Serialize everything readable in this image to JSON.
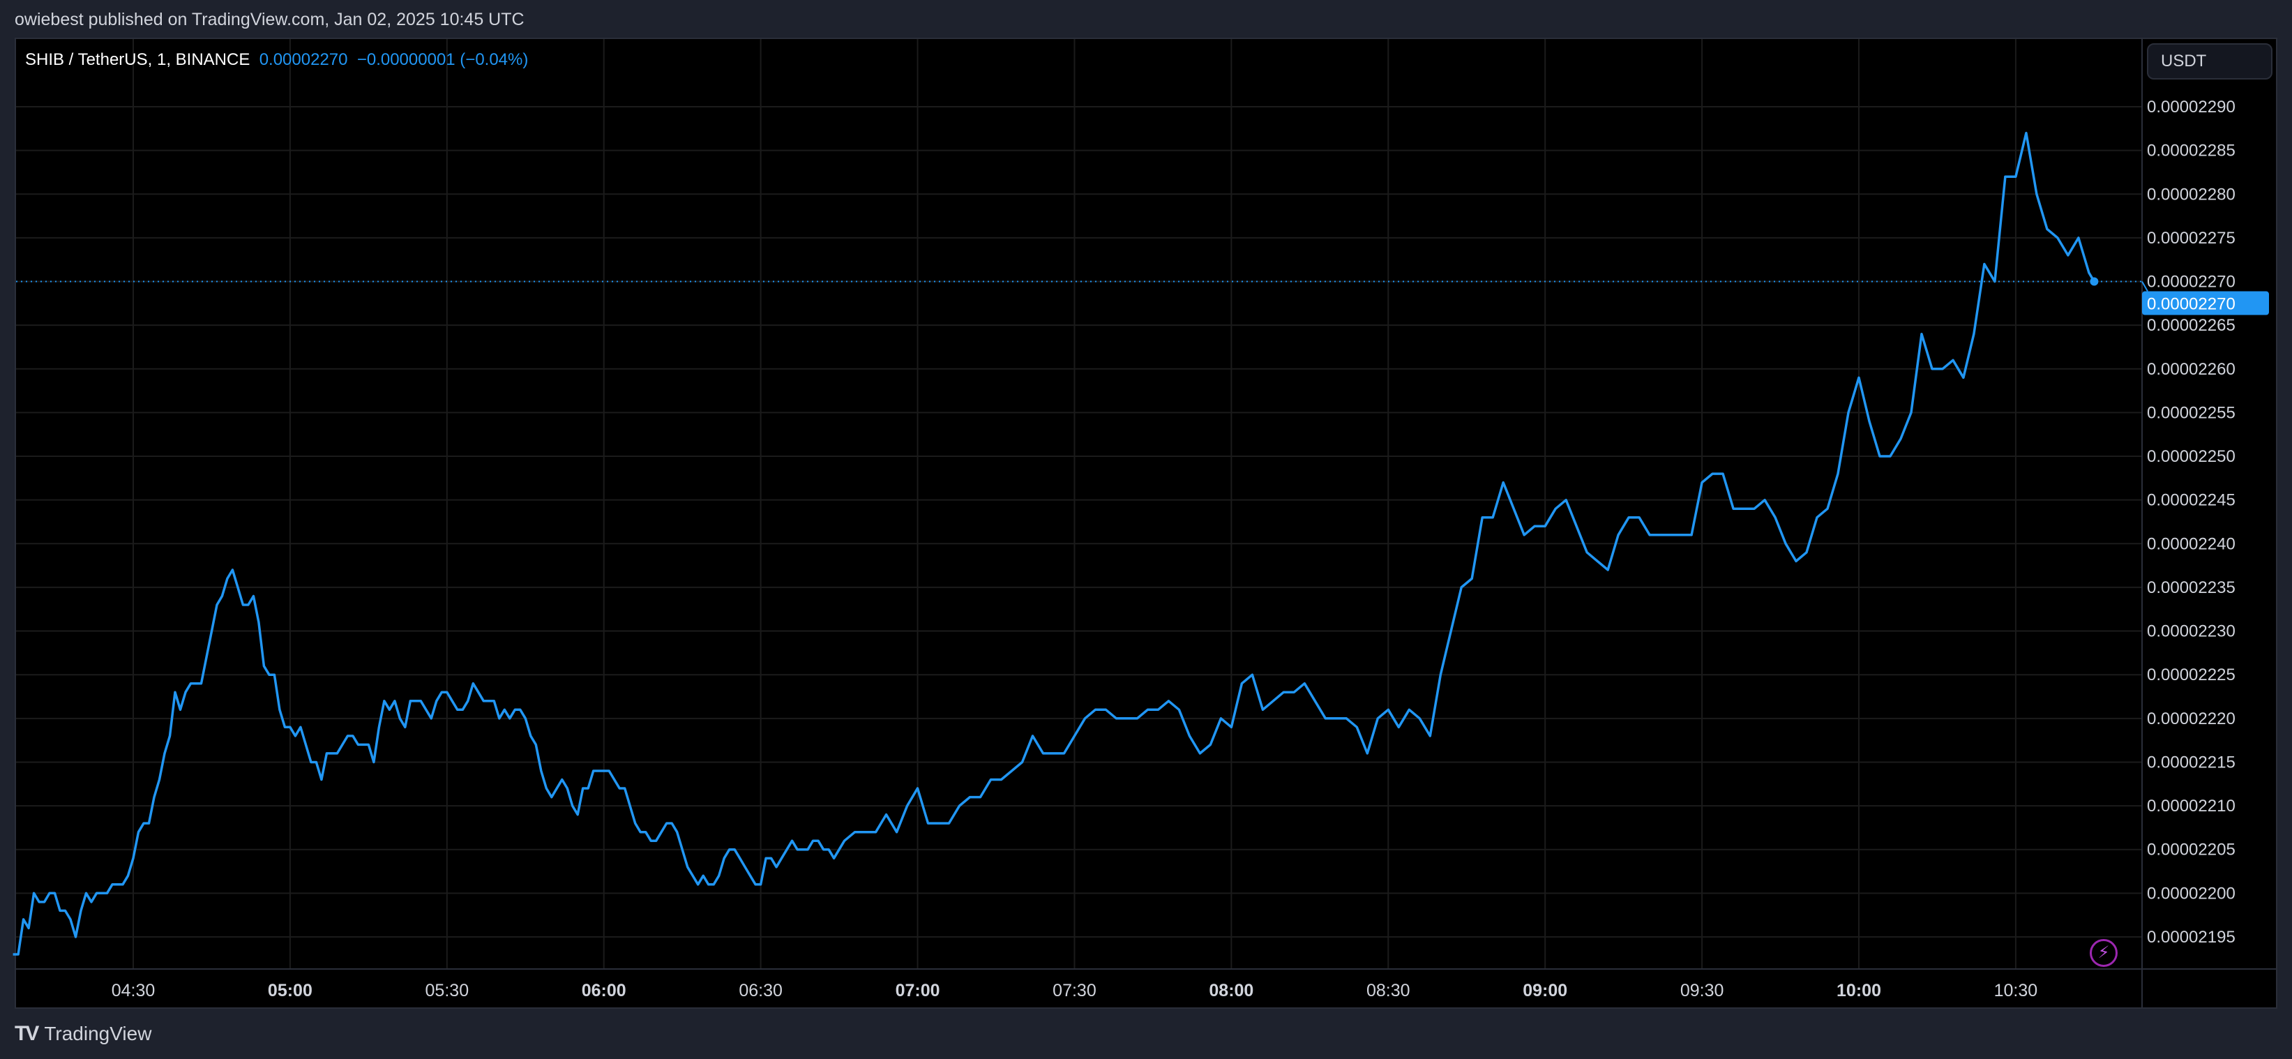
{
  "header": {
    "published": "owiebest published on TradingView.com, Jan 02, 2025 10:45 UTC"
  },
  "legend": {
    "symbol": "SHIB / TetherUS, 1, BINANCE",
    "price": "0.00002270",
    "change": "−0.00000001 (−0.04%)"
  },
  "price_scale": {
    "unit_button": "USDT"
  },
  "footer": {
    "brand": "TradingView",
    "logo_icon": "tradingview-logo-icon"
  },
  "colors": {
    "line": "#2196f3",
    "background": "#000000",
    "frame": "#1e222d",
    "grid": "#1b1b1b",
    "text": "#d1d4dc"
  },
  "icons": {
    "bottom_right": "lightning-icon"
  },
  "chart_data": {
    "type": "line",
    "title": "",
    "xlabel": "",
    "ylabel": "",
    "ylim": [
      2.19e-05,
      2.295e-05
    ],
    "grid": true,
    "last_price": 2.27e-05,
    "last_price_label": "0.00002270",
    "y_ticks": [
      "0.00002290",
      "0.00002285",
      "0.00002280",
      "0.00002275",
      "0.00002270",
      "0.00002265",
      "0.00002260",
      "0.00002255",
      "0.00002250",
      "0.00002245",
      "0.00002240",
      "0.00002235",
      "0.00002230",
      "0.00002225",
      "0.00002220",
      "0.00002215",
      "0.00002210",
      "0.00002205",
      "0.00002200",
      "0.00002195"
    ],
    "x_ticks": [
      {
        "label": "04:30",
        "bold": false
      },
      {
        "label": "05:00",
        "bold": true
      },
      {
        "label": "05:30",
        "bold": false
      },
      {
        "label": "06:00",
        "bold": true
      },
      {
        "label": "06:30",
        "bold": false
      },
      {
        "label": "07:00",
        "bold": true
      },
      {
        "label": "07:30",
        "bold": false
      },
      {
        "label": "08:00",
        "bold": true
      },
      {
        "label": "08:30",
        "bold": false
      },
      {
        "label": "09:00",
        "bold": true
      },
      {
        "label": "09:30",
        "bold": false
      },
      {
        "label": "10:00",
        "bold": true
      },
      {
        "label": "10:30",
        "bold": false
      }
    ],
    "x": [
      "04:07",
      "04:08",
      "04:09",
      "04:10",
      "04:11",
      "04:12",
      "04:13",
      "04:14",
      "04:15",
      "04:16",
      "04:17",
      "04:18",
      "04:19",
      "04:20",
      "04:21",
      "04:22",
      "04:23",
      "04:24",
      "04:25",
      "04:26",
      "04:27",
      "04:28",
      "04:29",
      "04:30",
      "04:31",
      "04:32",
      "04:33",
      "04:34",
      "04:35",
      "04:36",
      "04:37",
      "04:38",
      "04:39",
      "04:40",
      "04:41",
      "04:42",
      "04:43",
      "04:44",
      "04:45",
      "04:46",
      "04:47",
      "04:48",
      "04:49",
      "04:50",
      "04:51",
      "04:52",
      "04:53",
      "04:54",
      "04:55",
      "04:56",
      "04:57",
      "04:58",
      "04:59",
      "05:00",
      "05:01",
      "05:02",
      "05:03",
      "05:04",
      "05:05",
      "05:06",
      "05:07",
      "05:08",
      "05:09",
      "05:10",
      "05:11",
      "05:12",
      "05:13",
      "05:14",
      "05:15",
      "05:16",
      "05:17",
      "05:18",
      "05:19",
      "05:20",
      "05:21",
      "05:22",
      "05:23",
      "05:24",
      "05:25",
      "05:26",
      "05:27",
      "05:28",
      "05:29",
      "05:30",
      "05:31",
      "05:32",
      "05:33",
      "05:34",
      "05:35",
      "05:36",
      "05:37",
      "05:38",
      "05:39",
      "05:40",
      "05:41",
      "05:42",
      "05:43",
      "05:44",
      "05:45",
      "05:46",
      "05:47",
      "05:48",
      "05:49",
      "05:50",
      "05:51",
      "05:52",
      "05:53",
      "05:54",
      "05:55",
      "05:56",
      "05:57",
      "05:58",
      "05:59",
      "06:00",
      "06:01",
      "06:02",
      "06:03",
      "06:04",
      "06:05",
      "06:06",
      "06:07",
      "06:08",
      "06:09",
      "06:10",
      "06:11",
      "06:12",
      "06:13",
      "06:14",
      "06:15",
      "06:16",
      "06:17",
      "06:18",
      "06:19",
      "06:20",
      "06:21",
      "06:22",
      "06:23",
      "06:24",
      "06:25",
      "06:26",
      "06:27",
      "06:28",
      "06:29",
      "06:30",
      "06:31",
      "06:32",
      "06:33",
      "06:34",
      "06:35",
      "06:36",
      "06:37",
      "06:38",
      "06:39",
      "06:40",
      "06:41",
      "06:42",
      "06:43",
      "06:44",
      "06:46",
      "06:48",
      "06:50",
      "06:52",
      "06:54",
      "06:56",
      "06:58",
      "07:00",
      "07:02",
      "07:04",
      "07:06",
      "07:08",
      "07:10",
      "07:12",
      "07:14",
      "07:16",
      "07:18",
      "07:20",
      "07:22",
      "07:24",
      "07:26",
      "07:28",
      "07:30",
      "07:32",
      "07:34",
      "07:36",
      "07:38",
      "07:40",
      "07:42",
      "07:44",
      "07:46",
      "07:48",
      "07:50",
      "07:52",
      "07:54",
      "07:56",
      "07:58",
      "08:00",
      "08:02",
      "08:04",
      "08:06",
      "08:08",
      "08:10",
      "08:12",
      "08:14",
      "08:16",
      "08:18",
      "08:20",
      "08:22",
      "08:24",
      "08:26",
      "08:28",
      "08:30",
      "08:32",
      "08:34",
      "08:36",
      "08:38",
      "08:40",
      "08:42",
      "08:44",
      "08:46",
      "08:48",
      "08:50",
      "08:52",
      "08:54",
      "08:56",
      "08:58",
      "09:00",
      "09:02",
      "09:04",
      "09:06",
      "09:08",
      "09:10",
      "09:12",
      "09:14",
      "09:16",
      "09:18",
      "09:20",
      "09:22",
      "09:24",
      "09:26",
      "09:28",
      "09:30",
      "09:32",
      "09:34",
      "09:36",
      "09:38",
      "09:40",
      "09:42",
      "09:44",
      "09:46",
      "09:48",
      "09:50",
      "09:52",
      "09:54",
      "09:56",
      "09:58",
      "10:00",
      "10:02",
      "10:04",
      "10:06",
      "10:08",
      "10:10",
      "10:12",
      "10:14",
      "10:16",
      "10:18",
      "10:20",
      "10:22",
      "10:24",
      "10:26",
      "10:28",
      "10:30",
      "10:32",
      "10:34",
      "10:36",
      "10:38",
      "10:40",
      "10:42",
      "10:44",
      "10:45"
    ],
    "y": [
      2.193e-05,
      2.193e-05,
      2.197e-05,
      2.196e-05,
      2.2e-05,
      2.199e-05,
      2.199e-05,
      2.2e-05,
      2.2e-05,
      2.198e-05,
      2.198e-05,
      2.197e-05,
      2.195e-05,
      2.198e-05,
      2.2e-05,
      2.199e-05,
      2.2e-05,
      2.2e-05,
      2.2e-05,
      2.201e-05,
      2.201e-05,
      2.201e-05,
      2.202e-05,
      2.204e-05,
      2.207e-05,
      2.208e-05,
      2.208e-05,
      2.211e-05,
      2.213e-05,
      2.216e-05,
      2.218e-05,
      2.223e-05,
      2.221e-05,
      2.223e-05,
      2.224e-05,
      2.224e-05,
      2.224e-05,
      2.227e-05,
      2.23e-05,
      2.233e-05,
      2.234e-05,
      2.236e-05,
      2.237e-05,
      2.235e-05,
      2.233e-05,
      2.233e-05,
      2.234e-05,
      2.231e-05,
      2.226e-05,
      2.225e-05,
      2.225e-05,
      2.221e-05,
      2.219e-05,
      2.219e-05,
      2.218e-05,
      2.219e-05,
      2.217e-05,
      2.215e-05,
      2.215e-05,
      2.213e-05,
      2.216e-05,
      2.216e-05,
      2.216e-05,
      2.217e-05,
      2.218e-05,
      2.218e-05,
      2.217e-05,
      2.217e-05,
      2.217e-05,
      2.215e-05,
      2.219e-05,
      2.222e-05,
      2.221e-05,
      2.222e-05,
      2.22e-05,
      2.219e-05,
      2.222e-05,
      2.222e-05,
      2.222e-05,
      2.221e-05,
      2.22e-05,
      2.222e-05,
      2.223e-05,
      2.223e-05,
      2.222e-05,
      2.221e-05,
      2.221e-05,
      2.222e-05,
      2.224e-05,
      2.223e-05,
      2.222e-05,
      2.222e-05,
      2.222e-05,
      2.22e-05,
      2.221e-05,
      2.22e-05,
      2.221e-05,
      2.221e-05,
      2.22e-05,
      2.218e-05,
      2.217e-05,
      2.214e-05,
      2.212e-05,
      2.211e-05,
      2.212e-05,
      2.213e-05,
      2.212e-05,
      2.21e-05,
      2.209e-05,
      2.212e-05,
      2.212e-05,
      2.214e-05,
      2.214e-05,
      2.214e-05,
      2.214e-05,
      2.213e-05,
      2.212e-05,
      2.212e-05,
      2.21e-05,
      2.208e-05,
      2.207e-05,
      2.207e-05,
      2.206e-05,
      2.206e-05,
      2.207e-05,
      2.208e-05,
      2.208e-05,
      2.207e-05,
      2.205e-05,
      2.203e-05,
      2.202e-05,
      2.201e-05,
      2.202e-05,
      2.201e-05,
      2.201e-05,
      2.202e-05,
      2.204e-05,
      2.205e-05,
      2.205e-05,
      2.204e-05,
      2.203e-05,
      2.202e-05,
      2.201e-05,
      2.201e-05,
      2.204e-05,
      2.204e-05,
      2.203e-05,
      2.204e-05,
      2.205e-05,
      2.206e-05,
      2.205e-05,
      2.205e-05,
      2.205e-05,
      2.206e-05,
      2.206e-05,
      2.205e-05,
      2.205e-05,
      2.204e-05,
      2.206e-05,
      2.207e-05,
      2.207e-05,
      2.207e-05,
      2.209e-05,
      2.207e-05,
      2.21e-05,
      2.212e-05,
      2.208e-05,
      2.208e-05,
      2.208e-05,
      2.21e-05,
      2.211e-05,
      2.211e-05,
      2.213e-05,
      2.213e-05,
      2.214e-05,
      2.215e-05,
      2.218e-05,
      2.216e-05,
      2.216e-05,
      2.216e-05,
      2.218e-05,
      2.22e-05,
      2.221e-05,
      2.221e-05,
      2.22e-05,
      2.22e-05,
      2.22e-05,
      2.221e-05,
      2.221e-05,
      2.222e-05,
      2.221e-05,
      2.218e-05,
      2.216e-05,
      2.217e-05,
      2.22e-05,
      2.219e-05,
      2.224e-05,
      2.225e-05,
      2.221e-05,
      2.222e-05,
      2.223e-05,
      2.223e-05,
      2.224e-05,
      2.222e-05,
      2.22e-05,
      2.22e-05,
      2.22e-05,
      2.219e-05,
      2.216e-05,
      2.22e-05,
      2.221e-05,
      2.219e-05,
      2.221e-05,
      2.22e-05,
      2.218e-05,
      2.225e-05,
      2.23e-05,
      2.235e-05,
      2.236e-05,
      2.243e-05,
      2.243e-05,
      2.247e-05,
      2.244e-05,
      2.241e-05,
      2.242e-05,
      2.242e-05,
      2.244e-05,
      2.245e-05,
      2.242e-05,
      2.239e-05,
      2.238e-05,
      2.237e-05,
      2.241e-05,
      2.243e-05,
      2.243e-05,
      2.241e-05,
      2.241e-05,
      2.241e-05,
      2.241e-05,
      2.241e-05,
      2.247e-05,
      2.248e-05,
      2.248e-05,
      2.244e-05,
      2.244e-05,
      2.244e-05,
      2.245e-05,
      2.243e-05,
      2.24e-05,
      2.238e-05,
      2.239e-05,
      2.243e-05,
      2.244e-05,
      2.248e-05,
      2.255e-05,
      2.259e-05,
      2.254e-05,
      2.25e-05,
      2.25e-05,
      2.252e-05,
      2.255e-05,
      2.264e-05,
      2.26e-05,
      2.26e-05,
      2.261e-05,
      2.259e-05,
      2.264e-05,
      2.272e-05,
      2.27e-05,
      2.282e-05,
      2.282e-05,
      2.287e-05,
      2.28e-05,
      2.276e-05,
      2.275e-05,
      2.273e-05,
      2.275e-05,
      2.271e-05,
      2.27e-05
    ]
  }
}
